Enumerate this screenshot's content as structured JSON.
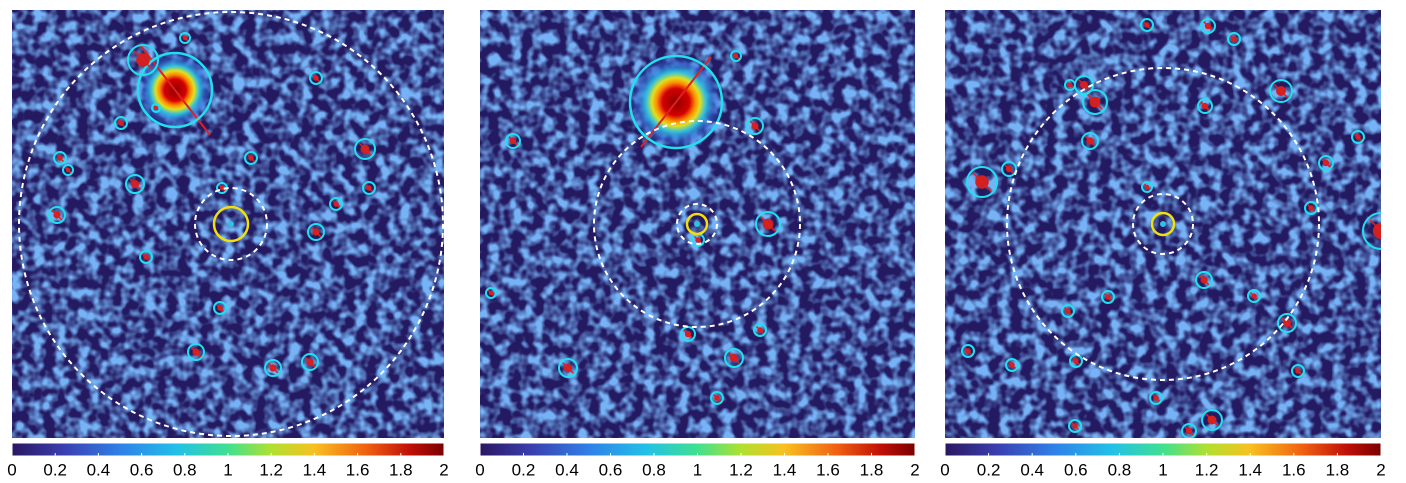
{
  "chart_data": [
    {
      "type": "colorbar",
      "xlim": [
        0,
        2
      ],
      "xticks": [
        0,
        0.2,
        0.4,
        0.6,
        0.8,
        1,
        1.2,
        1.4,
        1.6,
        1.8,
        2
      ]
    },
    {
      "type": "colorbar",
      "xlim": [
        0,
        2
      ],
      "xticks": [
        0,
        0.2,
        0.4,
        0.6,
        0.8,
        1,
        1.2,
        1.4,
        1.6,
        1.8,
        2
      ]
    },
    {
      "type": "colorbar",
      "xlim": [
        0,
        2
      ],
      "xticks": [
        0,
        0.2,
        0.4,
        0.6,
        0.8,
        1,
        1.2,
        1.4,
        1.6,
        1.8,
        2
      ]
    }
  ]
}
